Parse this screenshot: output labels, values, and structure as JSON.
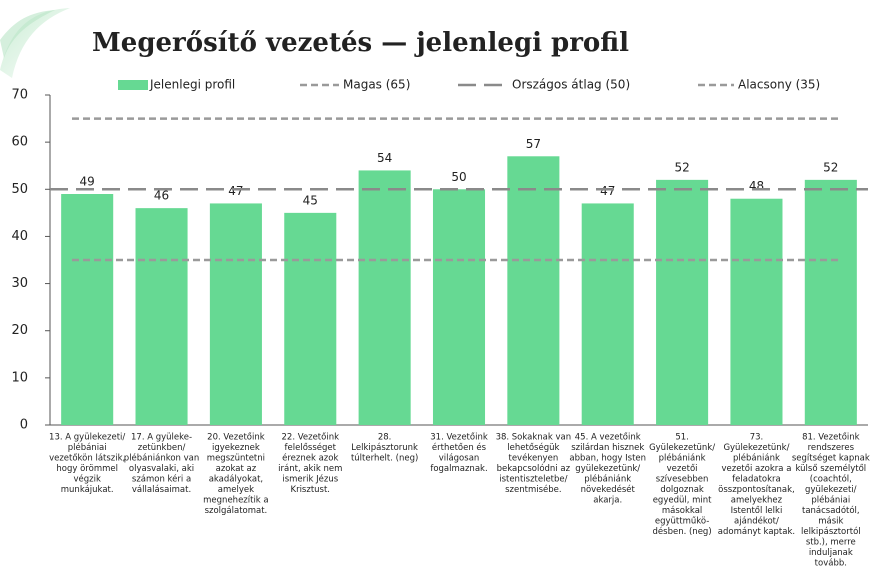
{
  "chart_data": {
    "type": "bar",
    "title": "Megerősítő vezetés — jelenlegi profil",
    "categories": [
      [
        "13. A gyülekezeti/",
        "plébániai",
        "vezetőkön látszik,",
        "hogy örömmel",
        "végzik",
        "munkájukat."
      ],
      [
        "17. A gyüleke-",
        "zetünkben/",
        "plébániánkon van",
        "olyasvalaki, aki",
        "számon kéri a",
        "vállalásaimat."
      ],
      [
        "20. Vezetőink",
        "igyekeznek",
        "megszüntetni",
        "azokat az",
        "akadályokat,",
        "amelyek",
        "megnehezítik a",
        "szolgálatomat."
      ],
      [
        "22. Vezetőink",
        "felelősséget",
        "éreznek azok",
        "iránt, akik nem",
        "ismerik Jézus",
        "Krisztust."
      ],
      [
        "28.",
        "Lelkipásztorunk",
        "túlterhelt. (neg)"
      ],
      [
        "31. Vezetőink",
        "érthetően és",
        "világosan",
        "fogalmaznak."
      ],
      [
        "38. Sokaknak van",
        "lehetőségük",
        "tevékenyen",
        "bekapcsolódni az",
        "istentiszteletbe/",
        "szentmisébe."
      ],
      [
        "45. A vezetőink",
        "szilárdan hisznek",
        "abban, hogy Isten",
        "gyülekezetünk/",
        "plébániánk",
        "növekedését",
        "akarja."
      ],
      [
        "51.",
        "Gyülekezetünk/",
        "plébániánk",
        "vezetői",
        "szívesebben",
        "dolgoznak",
        "egyedül, mint",
        "másokkal",
        "együttműkö-",
        "désben. (neg)"
      ],
      [
        "73.",
        "Gyülekezetünk/",
        "plébániánk",
        "vezetői azokra a",
        "feladatokra",
        "összpontosítanak,",
        "amelyekhez",
        "Istentől lelki",
        "ajándékot/",
        "adományt kaptak."
      ],
      [
        "81. Vezetőink",
        "rendszeres",
        "segítséget kapnak",
        "külső személytől",
        "(coachtól,",
        "gyülekezeti/",
        "plébániai",
        "tanácsadótól,",
        "másik",
        "lelkipásztortól",
        "stb.), merre",
        "induljanak",
        "tovább."
      ]
    ],
    "series": [
      {
        "name": "Jelenlegi profil",
        "color": "#66d993",
        "values": [
          49,
          46,
          47,
          45,
          54,
          50,
          57,
          47,
          52,
          48,
          52
        ]
      }
    ],
    "reference_lines": [
      {
        "name": "Magas (65)",
        "value": 65,
        "color": "#9a9a9a",
        "dash": "7 4"
      },
      {
        "name": "Országos átlag (50)",
        "value": 50,
        "color": "#8a8a8a",
        "dash": "18 8"
      },
      {
        "name": "Alacsony (35)",
        "value": 35,
        "color": "#9a9a9a",
        "dash": "7 4"
      }
    ],
    "ylim": [
      0,
      70
    ],
    "yticks": [
      0,
      10,
      20,
      30,
      40,
      50,
      60,
      70
    ],
    "grid": false
  }
}
